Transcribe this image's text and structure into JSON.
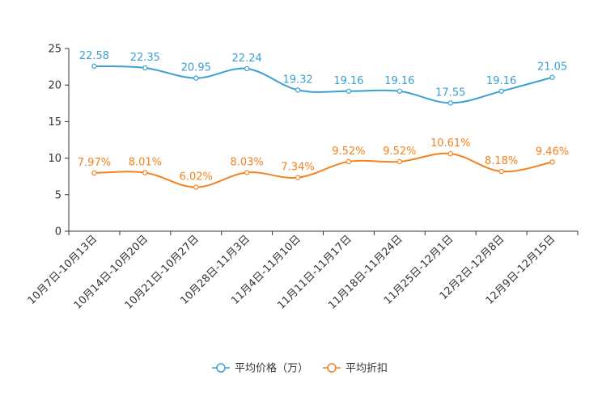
{
  "chart_data": {
    "type": "line",
    "title": "",
    "xlabel": "",
    "ylabel": "",
    "ylim": [
      0,
      25
    ],
    "yticks": [
      0,
      5,
      10,
      15,
      20,
      25
    ],
    "grid": false,
    "legend_position": "bottom-center",
    "categories": [
      "10月7日-10月13日",
      "10月14日-10月20日",
      "10月21日-10月27日",
      "10月28日-11月3日",
      "11月4日-11月10日",
      "11月11日-11月17日",
      "11月18日-11月24日",
      "11月25日-12月1日",
      "12月2日-12月8日",
      "12月9日-12月15日"
    ],
    "series": [
      {
        "name": "平均价格（万）",
        "color": "#3ba0d0",
        "values": [
          22.58,
          22.35,
          20.95,
          22.24,
          19.32,
          19.16,
          19.16,
          17.55,
          19.16,
          21.05
        ],
        "labels": [
          "22.58",
          "22.35",
          "20.95",
          "22.24",
          "19.32",
          "19.16",
          "19.16",
          "17.55",
          "19.16",
          "21.05"
        ]
      },
      {
        "name": "平均折扣",
        "color": "#f58220",
        "values": [
          7.97,
          8.01,
          6.02,
          8.03,
          7.34,
          9.52,
          9.52,
          10.61,
          8.18,
          9.46
        ],
        "labels": [
          "7.97%",
          "8.01%",
          "6.02%",
          "8.03%",
          "7.34%",
          "9.52%",
          "9.52%",
          "10.61%",
          "8.18%",
          "9.46%"
        ]
      }
    ]
  }
}
